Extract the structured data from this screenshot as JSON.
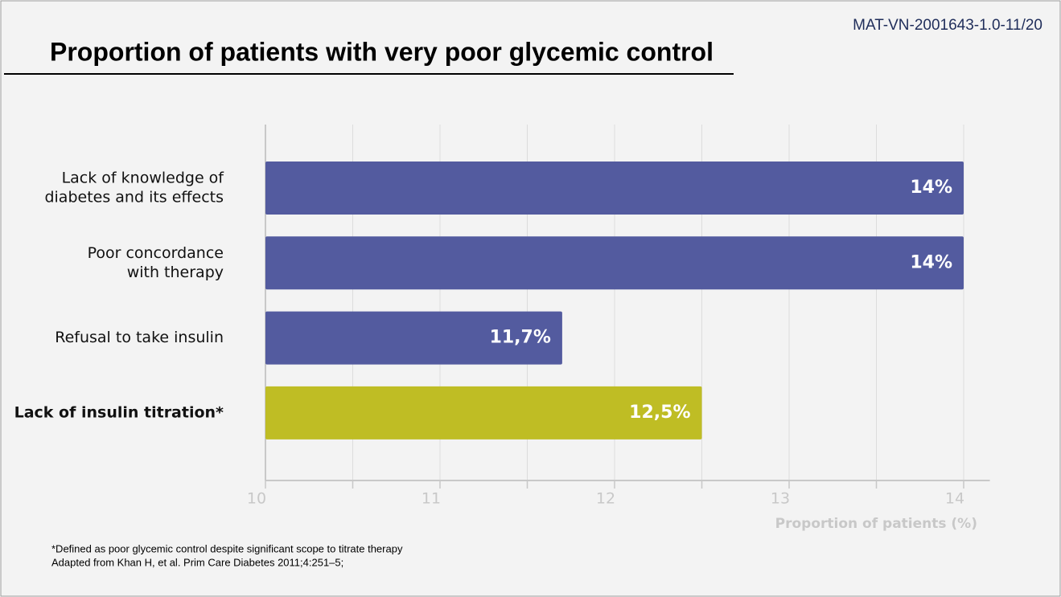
{
  "doc_code": "MAT-VN-2001643-1.0-11/20",
  "chart_data": {
    "type": "barh",
    "title": "Proportion of patients with very poor glycemic control",
    "categories": [
      [
        "Lack of knowledge of",
        "diabetes and its effects"
      ],
      [
        "Poor concordance",
        "with therapy"
      ],
      [
        "Refusal to take insulin"
      ],
      [
        "Lack of insulin titration*"
      ]
    ],
    "category_bold": [
      false,
      false,
      false,
      true
    ],
    "values": [
      14,
      14,
      11.7,
      12.5
    ],
    "value_labels": [
      "14%",
      "14%",
      "11,7%",
      "12,5%"
    ],
    "colors": [
      "#535b9f",
      "#535b9f",
      "#535b9f",
      "#bfbd24"
    ],
    "xlim": [
      10,
      14.15
    ],
    "xticks": [
      10,
      11,
      12,
      13,
      14
    ],
    "minor_xticks": [
      10.5,
      11.5,
      12.5,
      13.5
    ],
    "grid": true,
    "x_label": "Proportion of patients (%)"
  },
  "footnotes": [
    "*Defined as poor glycemic control despite significant scope to titrate therapy",
    "Adapted from Khan H, et al. Prim Care Diabetes 2011;4:251–5;"
  ]
}
